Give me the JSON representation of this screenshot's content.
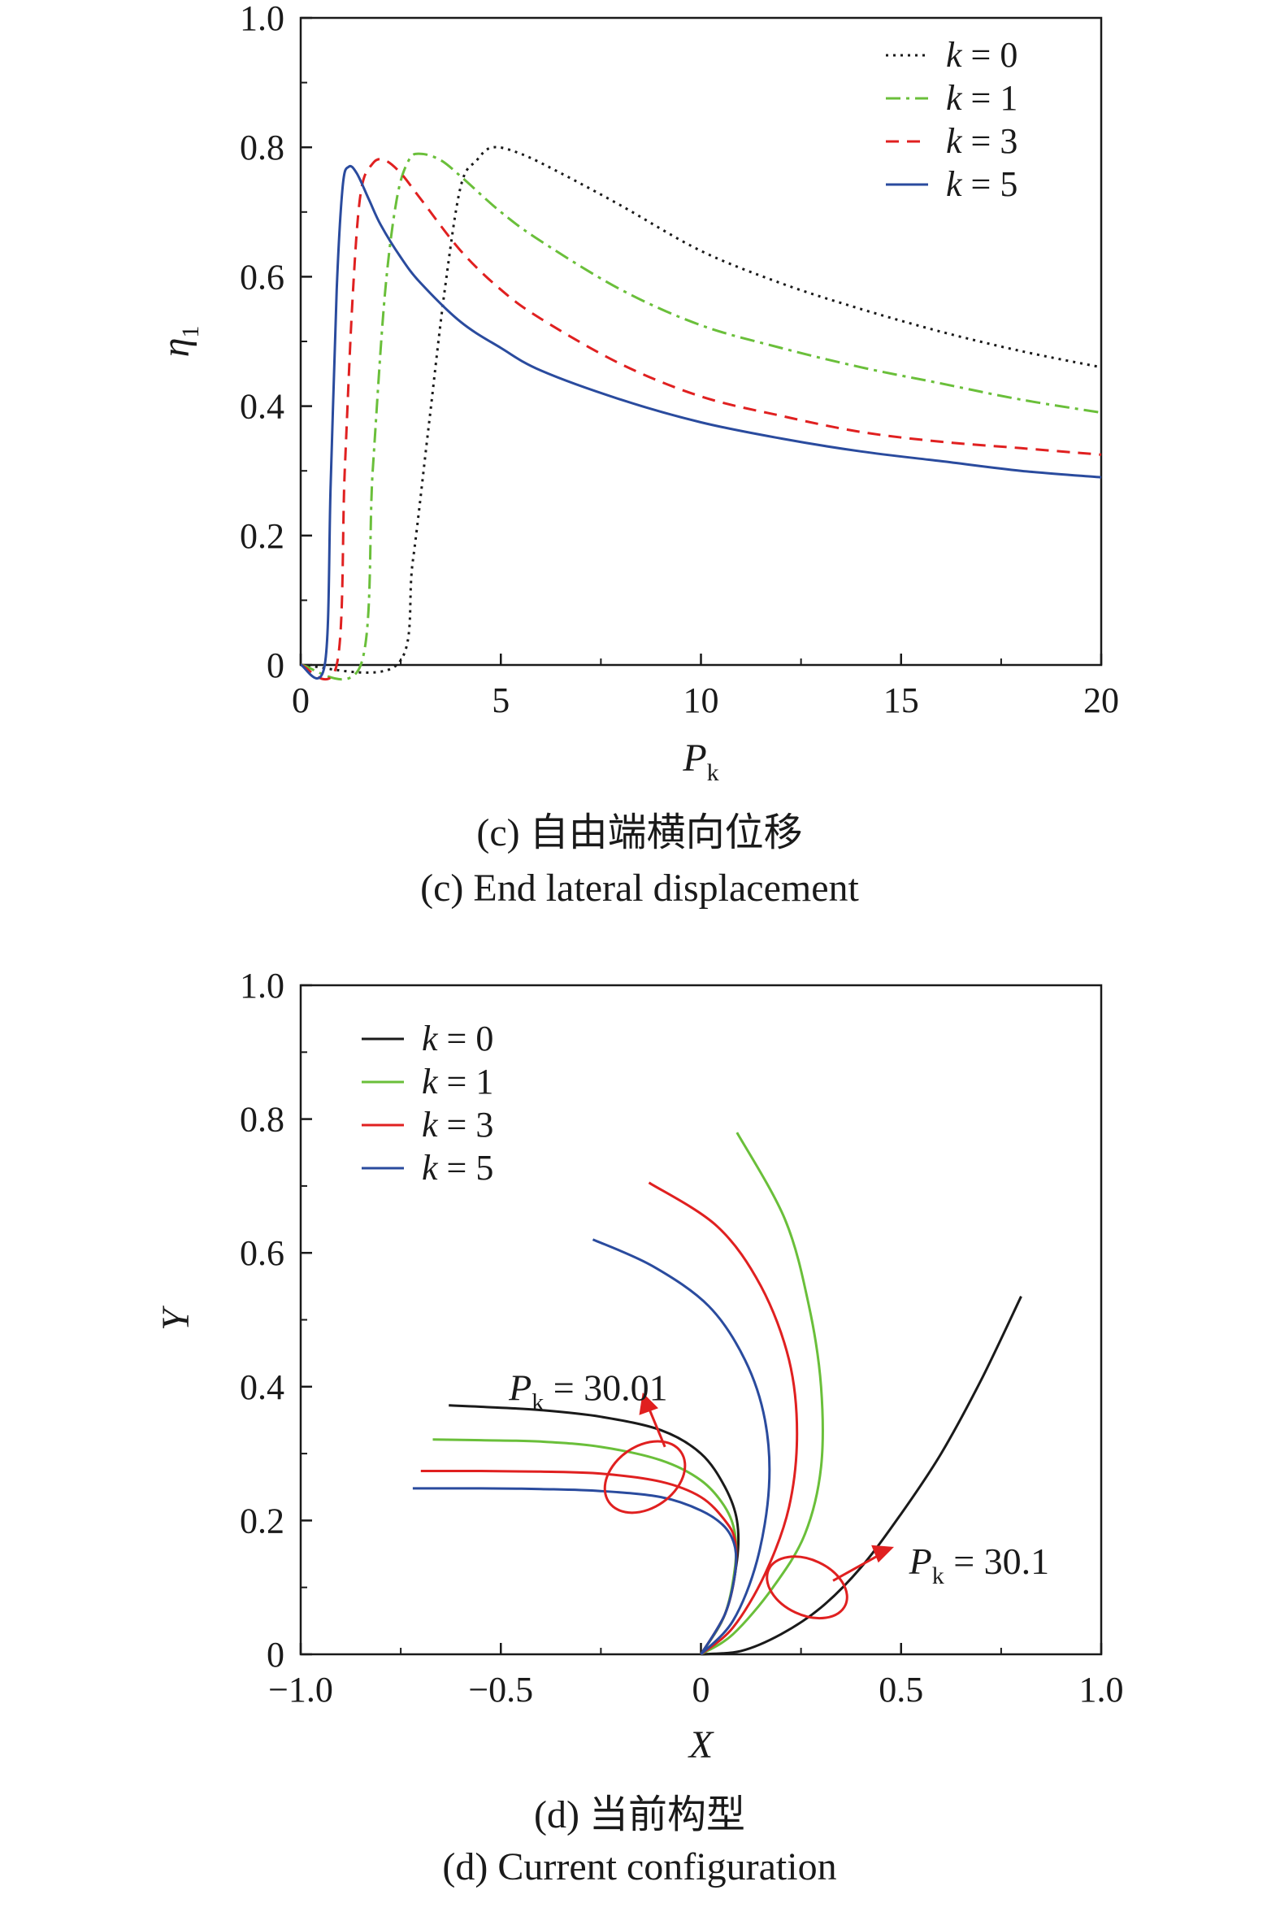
{
  "chart_data": [
    {
      "type": "line",
      "panel_caption_cn": "(c) 自由端横向位移",
      "panel_caption_en": "(c) End lateral displacement",
      "xlabel": "P",
      "xlabel_sub": "k",
      "ylabel": "η",
      "ylabel_sub": "1",
      "xlim": [
        0,
        20
      ],
      "ylim": [
        0,
        1.0
      ],
      "xticks": [
        "0",
        "5",
        "10",
        "15",
        "20"
      ],
      "yticks": [
        "0",
        "0.2",
        "0.4",
        "0.6",
        "0.8",
        "1.0"
      ],
      "grid": false,
      "legend_position": "top-right",
      "series": [
        {
          "name": "k = 0",
          "color": "#1a1a1a",
          "style": "dotted",
          "x": [
            0,
            2.4,
            2.8,
            3.2,
            3.6,
            4.0,
            4.4,
            4.8,
            5.5,
            6.5,
            8,
            10,
            12,
            14,
            16,
            18,
            20
          ],
          "y": [
            0,
            0,
            0.16,
            0.37,
            0.58,
            0.74,
            0.78,
            0.8,
            0.79,
            0.76,
            0.71,
            0.64,
            0.59,
            0.55,
            0.515,
            0.485,
            0.46
          ]
        },
        {
          "name": "k = 1",
          "color": "#6abf3a",
          "style": "dashdot",
          "x": [
            0,
            1.5,
            1.8,
            2.1,
            2.4,
            2.7,
            3.0,
            3.5,
            4.0,
            5,
            6,
            8,
            10,
            12,
            14,
            16,
            18,
            20
          ],
          "y": [
            0,
            0,
            0.3,
            0.57,
            0.72,
            0.78,
            0.79,
            0.78,
            0.755,
            0.7,
            0.655,
            0.58,
            0.525,
            0.49,
            0.46,
            0.435,
            0.41,
            0.39
          ]
        },
        {
          "name": "k = 3",
          "color": "#e02020",
          "style": "dashed",
          "x": [
            0,
            0.9,
            1.1,
            1.3,
            1.5,
            1.8,
            2.1,
            2.5,
            3,
            4,
            5,
            6,
            8,
            10,
            12,
            14,
            16,
            18,
            20
          ],
          "y": [
            0,
            0,
            0.3,
            0.57,
            0.73,
            0.775,
            0.78,
            0.76,
            0.72,
            0.64,
            0.58,
            0.535,
            0.465,
            0.415,
            0.385,
            0.36,
            0.345,
            0.335,
            0.325
          ]
        },
        {
          "name": "k = 5",
          "color": "#2a4b9e",
          "style": "solid",
          "x": [
            0,
            0.6,
            0.75,
            0.9,
            1.05,
            1.2,
            1.4,
            1.7,
            2,
            2.5,
            3,
            4,
            5,
            6,
            8,
            10,
            12,
            14,
            16,
            18,
            20
          ],
          "y": [
            0,
            0,
            0.28,
            0.58,
            0.74,
            0.77,
            0.76,
            0.72,
            0.68,
            0.63,
            0.59,
            0.53,
            0.49,
            0.455,
            0.41,
            0.375,
            0.35,
            0.33,
            0.315,
            0.3,
            0.29
          ]
        }
      ]
    },
    {
      "type": "line",
      "panel_caption_cn": "(d) 当前构型",
      "panel_caption_en": "(d) Current configuration",
      "xlabel": "X",
      "ylabel": "Y",
      "xlim": [
        -1.0,
        1.0
      ],
      "ylim": [
        0,
        1.0
      ],
      "xticks": [
        "−1.0",
        "−0.5",
        "0",
        "0.5",
        "1.0"
      ],
      "yticks": [
        "0",
        "0.2",
        "0.4",
        "0.6",
        "0.8",
        "1.0"
      ],
      "grid": false,
      "legend_position": "top-left",
      "annotations": [
        {
          "label": "P",
          "sub": "k",
          "value": "= 30.01"
        },
        {
          "label": "P",
          "sub": "k",
          "value": "= 30.1"
        }
      ],
      "series": [
        {
          "name": "k = 0",
          "color": "#1a1a1a",
          "group": "Pk = 30.01",
          "x": [
            0,
            0.06,
            0.09,
            0.09,
            0.06,
            0.0,
            -0.1,
            -0.25,
            -0.4,
            -0.55,
            -0.63
          ],
          "y": [
            0,
            0.06,
            0.14,
            0.2,
            0.25,
            0.3,
            0.335,
            0.355,
            0.365,
            0.37,
            0.372
          ]
        },
        {
          "name": "k = 1",
          "color": "#6abf3a",
          "group": "Pk = 30.01",
          "x": [
            0,
            0.06,
            0.085,
            0.085,
            0.06,
            0.0,
            -0.1,
            -0.25,
            -0.4,
            -0.55,
            -0.67
          ],
          "y": [
            0,
            0.06,
            0.13,
            0.18,
            0.22,
            0.26,
            0.29,
            0.31,
            0.318,
            0.32,
            0.321
          ]
        },
        {
          "name": "k = 3",
          "color": "#e02020",
          "group": "Pk = 30.01",
          "x": [
            0,
            0.06,
            0.085,
            0.085,
            0.06,
            0.0,
            -0.1,
            -0.25,
            -0.4,
            -0.55,
            -0.7
          ],
          "y": [
            0,
            0.06,
            0.12,
            0.17,
            0.2,
            0.235,
            0.258,
            0.27,
            0.273,
            0.274,
            0.274
          ]
        },
        {
          "name": "k = 5",
          "color": "#2a4b9e",
          "group": "Pk = 30.01",
          "x": [
            0,
            0.06,
            0.085,
            0.085,
            0.06,
            0.0,
            -0.1,
            -0.25,
            -0.4,
            -0.55,
            -0.72
          ],
          "y": [
            0,
            0.06,
            0.12,
            0.16,
            0.19,
            0.215,
            0.235,
            0.244,
            0.247,
            0.248,
            0.248
          ]
        },
        {
          "name": "k = 0",
          "color": "#1a1a1a",
          "group": "Pk = 30.1",
          "x": [
            0,
            0.1,
            0.2,
            0.3,
            0.4,
            0.5,
            0.6,
            0.7,
            0.8
          ],
          "y": [
            0,
            0.005,
            0.03,
            0.07,
            0.13,
            0.21,
            0.3,
            0.41,
            0.535
          ]
        },
        {
          "name": "k = 1",
          "color": "#6abf3a",
          "group": "Pk = 30.1",
          "x": [
            0,
            0.08,
            0.18,
            0.26,
            0.3,
            0.3,
            0.27,
            0.21,
            0.09
          ],
          "y": [
            0,
            0.03,
            0.1,
            0.18,
            0.28,
            0.4,
            0.52,
            0.65,
            0.78
          ]
        },
        {
          "name": "k = 3",
          "color": "#e02020",
          "group": "Pk = 30.1",
          "x": [
            0,
            0.08,
            0.16,
            0.22,
            0.24,
            0.22,
            0.15,
            0.04,
            -0.13
          ],
          "y": [
            0,
            0.04,
            0.12,
            0.22,
            0.33,
            0.44,
            0.55,
            0.64,
            0.705
          ]
        },
        {
          "name": "k = 5",
          "color": "#2a4b9e",
          "group": "Pk = 30.1",
          "x": [
            0,
            0.08,
            0.14,
            0.17,
            0.16,
            0.11,
            0.02,
            -0.12,
            -0.27
          ],
          "y": [
            0,
            0.05,
            0.14,
            0.25,
            0.35,
            0.44,
            0.52,
            0.58,
            0.62
          ]
        }
      ]
    }
  ]
}
